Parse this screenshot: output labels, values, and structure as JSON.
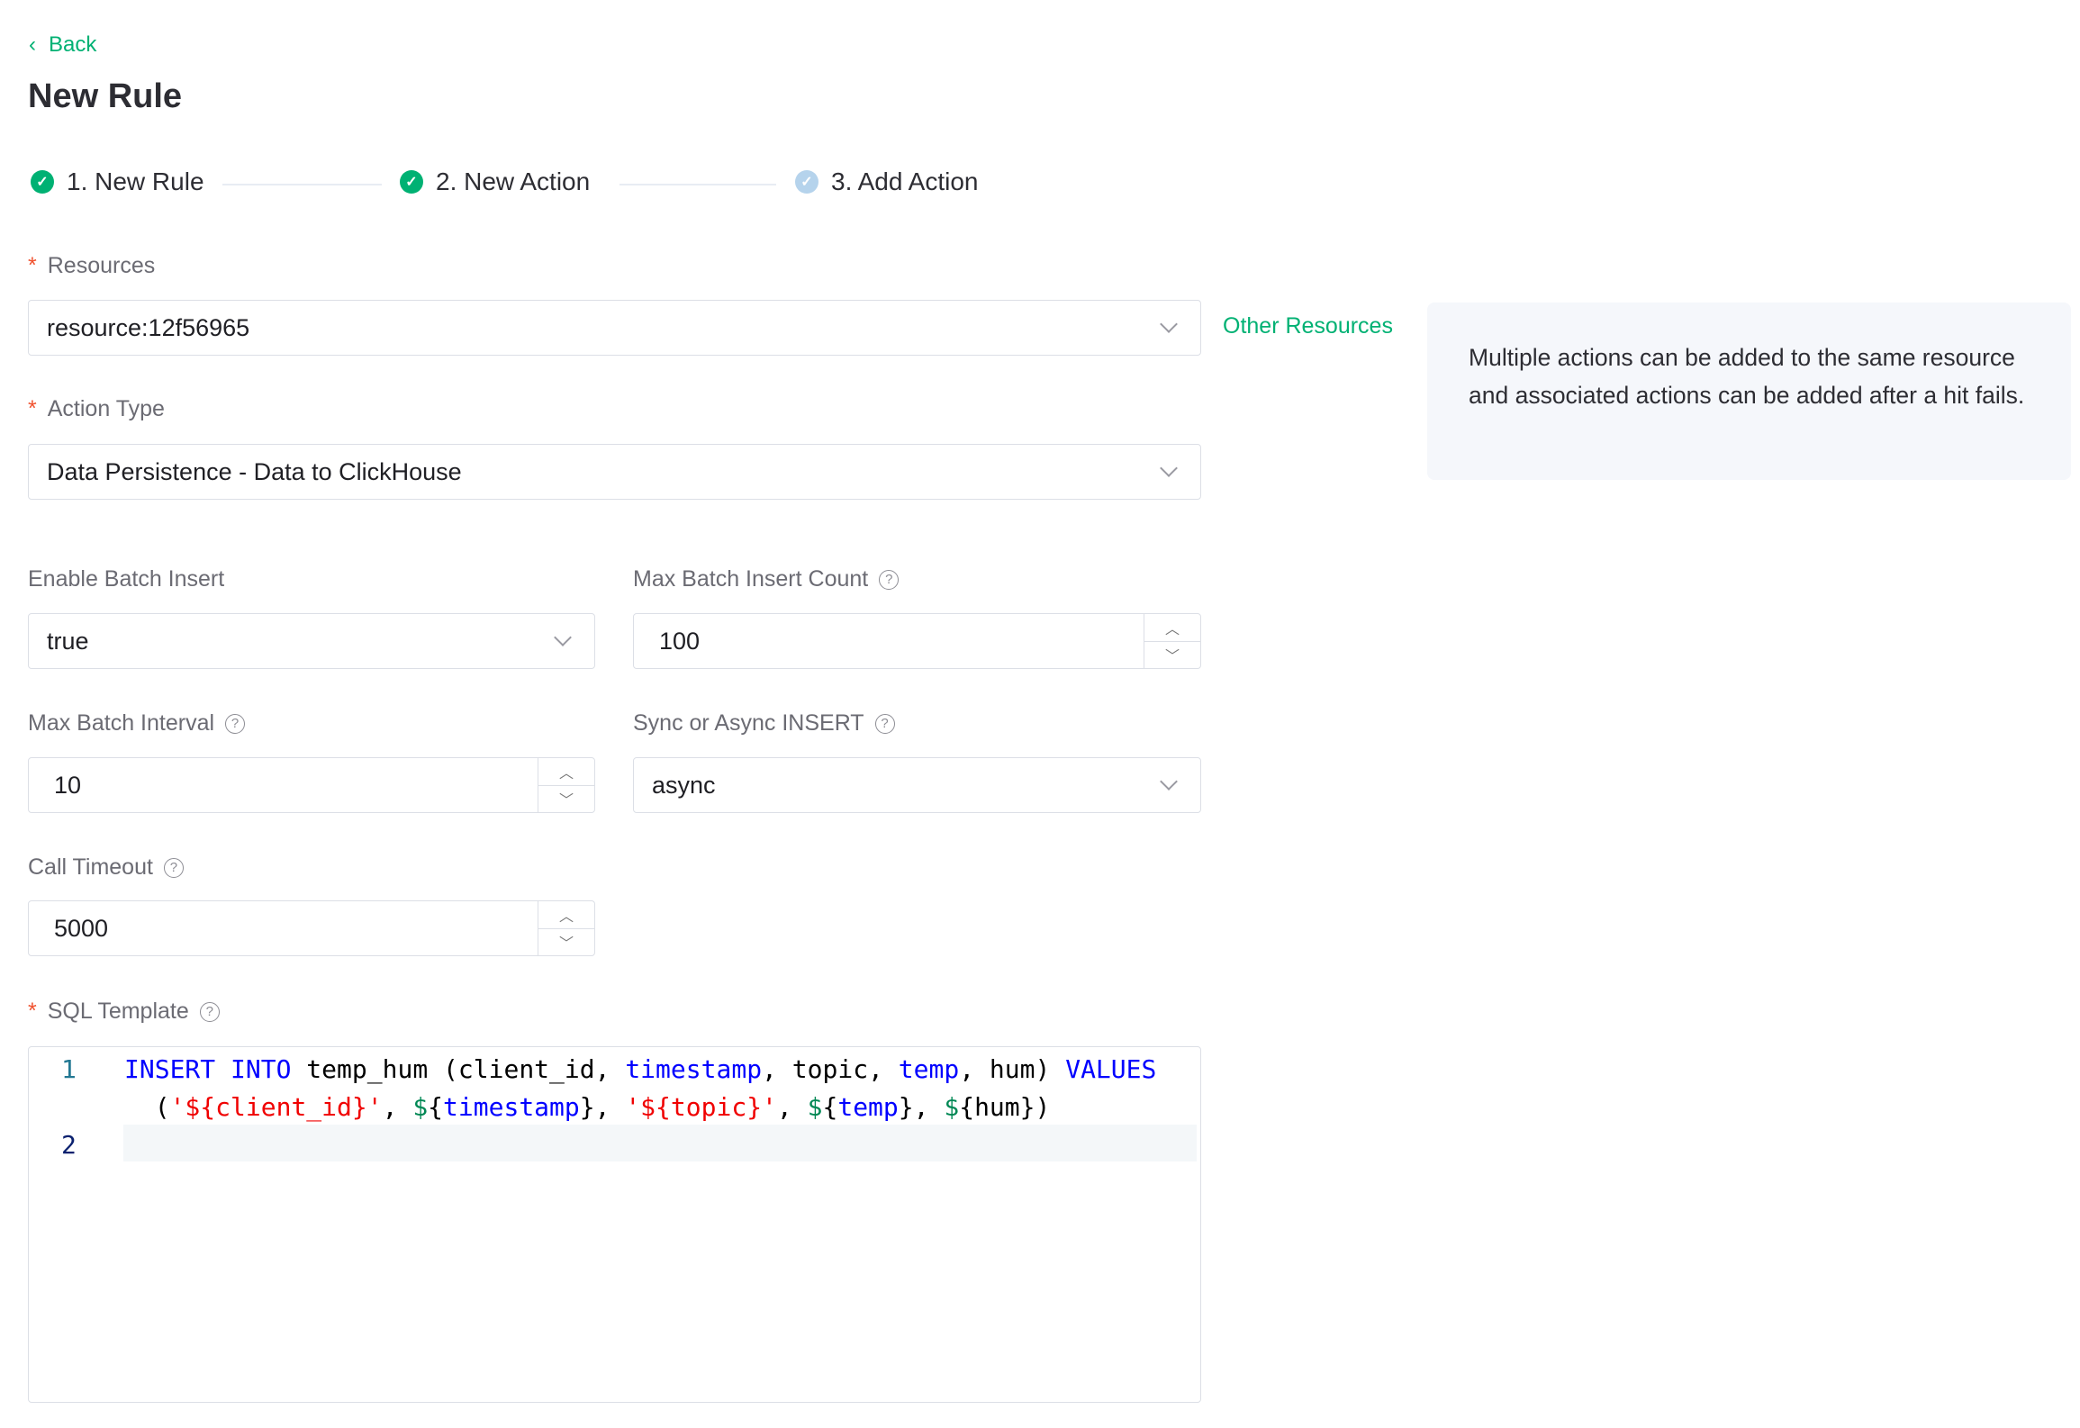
{
  "back_label": "Back",
  "page_title": "New Rule",
  "steps": [
    {
      "label": "1. New Rule",
      "status": "done"
    },
    {
      "label": "2. New Action",
      "status": "done"
    },
    {
      "label": "3. Add Action",
      "status": "current"
    }
  ],
  "colors": {
    "accent": "#00b173",
    "required": "#f0522f",
    "step_pending": "#b5d3ec"
  },
  "resources": {
    "label": "Resources",
    "value": "resource:12f56965",
    "other_link": "Other Resources"
  },
  "info_text": "Multiple actions can be added to the same resource and associated actions can be added after a hit fails.",
  "action_type": {
    "label": "Action Type",
    "value": "Data Persistence - Data to ClickHouse"
  },
  "enable_batch": {
    "label": "Enable Batch Insert",
    "value": "true"
  },
  "max_batch_count": {
    "label": "Max Batch Insert Count",
    "value": "100"
  },
  "max_batch_interval": {
    "label": "Max Batch Interval",
    "value": "10"
  },
  "sync_async": {
    "label": "Sync or Async INSERT",
    "value": "async"
  },
  "call_timeout": {
    "label": "Call Timeout",
    "value": "5000"
  },
  "sql": {
    "label": "SQL Template",
    "line_numbers": [
      "1",
      "2"
    ],
    "tokens": {
      "insert": "INSERT",
      "into": "INTO",
      "t1": " temp_hum (client_id, ",
      "timestamp": "timestamp",
      "t2": ", topic, ",
      "temp": "temp",
      "t3": ", hum) ",
      "values": "VALUES",
      "w0": "  (",
      "s1": "'${client_id}'",
      "w1": ", ",
      "d1": "$",
      "b1": "{",
      "v1": "timestamp",
      "e1": "}",
      "w2": ", ",
      "s2": "'${topic}'",
      "w3": ", ",
      "d2": "$",
      "b2": "{",
      "v2": "temp",
      "e2": "}",
      "w4": ", ",
      "d3": "$",
      "r3": "{hum})"
    }
  }
}
